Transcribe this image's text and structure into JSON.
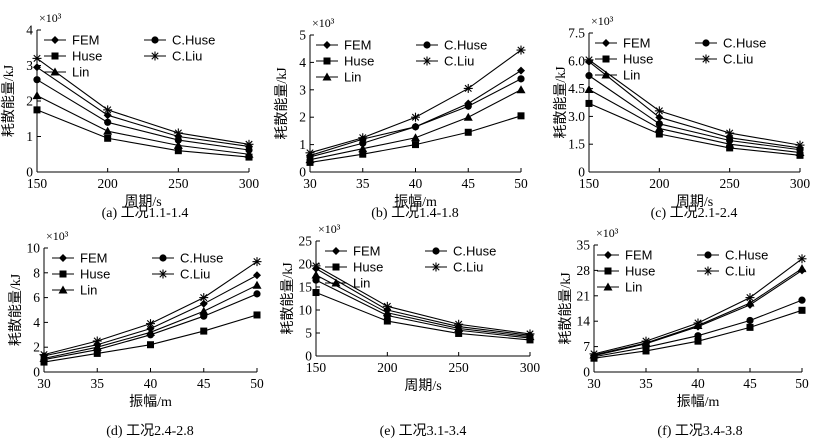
{
  "chart_data": [
    {
      "type": "line",
      "caption": "(a) 工况1.1-1.4",
      "xlabel": "周期/s",
      "ylabel": "耗散能量/kJ",
      "multiplier": "×10³",
      "x": [
        150,
        200,
        250,
        300
      ],
      "xlim": [
        150,
        300
      ],
      "xticks": [
        150,
        200,
        250,
        300
      ],
      "ylim": [
        0,
        4
      ],
      "yticks": [
        0,
        1,
        2,
        3,
        4
      ],
      "ytick_labels": [
        "0",
        "1",
        "2",
        "3",
        "4"
      ],
      "series": [
        {
          "name": "FEM",
          "values": [
            2.95,
            1.6,
            1.0,
            0.72
          ]
        },
        {
          "name": "Huse",
          "values": [
            1.75,
            0.95,
            0.6,
            0.42
          ]
        },
        {
          "name": "Lin",
          "values": [
            2.15,
            1.15,
            0.75,
            0.5
          ]
        },
        {
          "name": "C.Huse",
          "values": [
            2.6,
            1.4,
            0.9,
            0.62
          ]
        },
        {
          "name": "C.Liu",
          "values": [
            3.2,
            1.75,
            1.1,
            0.78
          ]
        }
      ]
    },
    {
      "type": "line",
      "caption": "(b) 工况1.4-1.8",
      "xlabel": "振幅/m",
      "ylabel": "耗散能量/kJ",
      "multiplier": "×10³",
      "x": [
        30,
        35,
        40,
        45,
        50
      ],
      "xlim": [
        30,
        50
      ],
      "xticks": [
        30,
        35,
        40,
        45,
        50
      ],
      "ylim": [
        0,
        5
      ],
      "yticks": [
        0,
        1,
        2,
        3,
        4,
        5
      ],
      "ytick_labels": [
        "0",
        "1",
        "2",
        "3",
        "4",
        "5"
      ],
      "series": [
        {
          "name": "FEM",
          "values": [
            0.6,
            1.2,
            1.65,
            2.5,
            3.7
          ]
        },
        {
          "name": "Huse",
          "values": [
            0.35,
            0.65,
            1.0,
            1.45,
            2.05
          ]
        },
        {
          "name": "Lin",
          "values": [
            0.45,
            0.85,
            1.25,
            2.0,
            3.0
          ]
        },
        {
          "name": "C.Huse",
          "values": [
            0.55,
            1.05,
            1.65,
            2.4,
            3.4
          ]
        },
        {
          "name": "C.Liu",
          "values": [
            0.7,
            1.25,
            2.0,
            3.05,
            4.45
          ]
        }
      ]
    },
    {
      "type": "line",
      "caption": "(c) 工况2.1-2.4",
      "xlabel": "周期/s",
      "ylabel": "耗散能量/kJ",
      "multiplier": "×10³",
      "x": [
        150,
        200,
        250,
        300
      ],
      "xlim": [
        150,
        300
      ],
      "xticks": [
        150,
        200,
        250,
        300
      ],
      "ylim": [
        0,
        7.5
      ],
      "yticks": [
        0,
        1.5,
        3,
        4.5,
        6,
        7.5
      ],
      "ytick_labels": [
        "0",
        "1.5",
        "3.0",
        "4.5",
        "6.0",
        "7.5"
      ],
      "series": [
        {
          "name": "FEM",
          "values": [
            5.95,
            2.95,
            1.85,
            1.3
          ]
        },
        {
          "name": "Huse",
          "values": [
            3.7,
            2.05,
            1.3,
            0.9
          ]
        },
        {
          "name": "Lin",
          "values": [
            4.45,
            2.35,
            1.5,
            1.05
          ]
        },
        {
          "name": "C.Huse",
          "values": [
            5.2,
            2.6,
            1.7,
            1.2
          ]
        },
        {
          "name": "C.Liu",
          "values": [
            6.05,
            3.3,
            2.1,
            1.45
          ]
        }
      ]
    },
    {
      "type": "line",
      "caption": "(d) 工况2.4-2.8",
      "xlabel": "振幅/m",
      "ylabel": "耗散能量/kJ",
      "multiplier": "×10³",
      "x": [
        30,
        35,
        40,
        45,
        50
      ],
      "xlim": [
        30,
        50
      ],
      "xticks": [
        30,
        35,
        40,
        45,
        50
      ],
      "ylim": [
        0,
        10
      ],
      "yticks": [
        0,
        2,
        4,
        6,
        8,
        10
      ],
      "ytick_labels": [
        "0",
        "2",
        "4",
        "6",
        "8",
        "10"
      ],
      "series": [
        {
          "name": "FEM",
          "values": [
            1.3,
            2.2,
            3.5,
            5.5,
            7.8
          ]
        },
        {
          "name": "Huse",
          "values": [
            0.8,
            1.5,
            2.2,
            3.3,
            4.6
          ]
        },
        {
          "name": "Lin",
          "values": [
            1.1,
            2.0,
            3.2,
            4.9,
            7.0
          ]
        },
        {
          "name": "C.Huse",
          "values": [
            1.0,
            1.8,
            3.0,
            4.5,
            6.3
          ]
        },
        {
          "name": "C.Liu",
          "values": [
            1.4,
            2.5,
            3.9,
            6.0,
            8.9
          ]
        }
      ]
    },
    {
      "type": "line",
      "caption": "(e) 工况3.1-3.4",
      "xlabel": "周期/s",
      "ylabel": "耗散能量/kJ",
      "multiplier": "×10³",
      "x": [
        150,
        200,
        250,
        300
      ],
      "xlim": [
        150,
        300
      ],
      "xticks": [
        150,
        200,
        250,
        300
      ],
      "ylim": [
        0,
        25
      ],
      "yticks": [
        0,
        5,
        10,
        15,
        20,
        25
      ],
      "ytick_labels": [
        "0",
        "5",
        "10",
        "15",
        "20",
        "25"
      ],
      "series": [
        {
          "name": "FEM",
          "values": [
            19.0,
            10.0,
            6.4,
            4.5
          ]
        },
        {
          "name": "Huse",
          "values": [
            13.8,
            7.6,
            4.9,
            3.5
          ]
        },
        {
          "name": "Lin",
          "values": [
            17.6,
            9.4,
            6.0,
            4.2
          ]
        },
        {
          "name": "C.Huse",
          "values": [
            16.5,
            8.8,
            5.6,
            3.9
          ]
        },
        {
          "name": "C.Liu",
          "values": [
            19.6,
            10.8,
            6.9,
            4.8
          ]
        }
      ]
    },
    {
      "type": "line",
      "caption": "(f) 工况3.4-3.8",
      "xlabel": "振幅/m",
      "ylabel": "耗散能量/kJ",
      "multiplier": "×10³",
      "x": [
        30,
        35,
        40,
        45,
        50
      ],
      "xlim": [
        30,
        50
      ],
      "xticks": [
        30,
        35,
        40,
        45,
        50
      ],
      "ylim": [
        0,
        35
      ],
      "yticks": [
        0,
        7,
        14,
        21,
        28,
        35
      ],
      "ytick_labels": [
        "0",
        "7",
        "14",
        "21",
        "28",
        "35"
      ],
      "series": [
        {
          "name": "FEM",
          "values": [
            4.5,
            7.8,
            12.5,
            18.5,
            28.0
          ]
        },
        {
          "name": "Huse",
          "values": [
            3.8,
            5.8,
            8.5,
            12.3,
            17.0
          ]
        },
        {
          "name": "Lin",
          "values": [
            4.7,
            8.0,
            12.8,
            19.0,
            28.5
          ]
        },
        {
          "name": "C.Huse",
          "values": [
            4.2,
            6.8,
            10.0,
            14.2,
            19.8
          ]
        },
        {
          "name": "C.Liu",
          "values": [
            5.0,
            8.5,
            13.5,
            20.5,
            31.2
          ]
        }
      ]
    }
  ]
}
